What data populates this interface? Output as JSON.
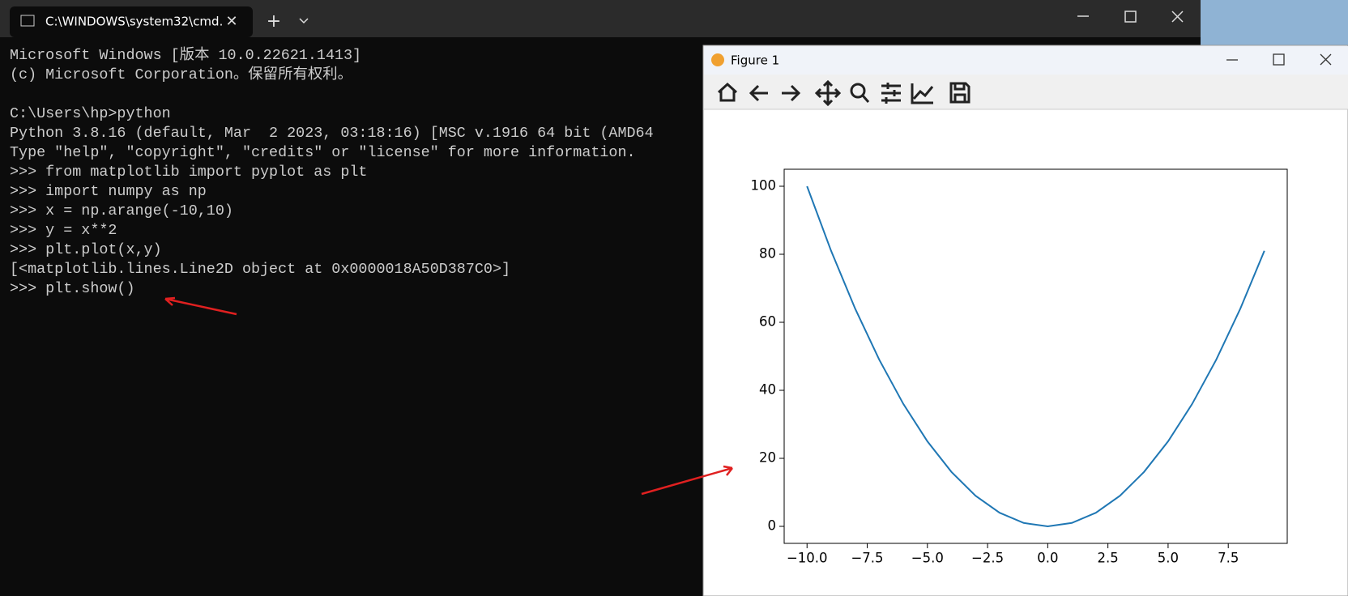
{
  "terminal": {
    "tab_title": "C:\\WINDOWS\\system32\\cmd.",
    "blocks": [
      [
        "Microsoft Windows [版本 10.0.22621.1413]",
        "(c) Microsoft Corporation。保留所有权利。"
      ],
      [
        "C:\\Users\\hp>python",
        "Python 3.8.16 (default, Mar  2 2023, 03:18:16) [MSC v.1916 64 bit (AMD64",
        "Type \"help\", \"copyright\", \"credits\" or \"license\" for more information.",
        ">>> from matplotlib import pyplot as plt",
        ">>> import numpy as np",
        ">>> x = np.arange(-10,10)",
        ">>> y = x**2",
        ">>> plt.plot(x,y)",
        "[<matplotlib.lines.Line2D object at 0x0000018A50D387C0>]",
        ">>> plt.show()"
      ]
    ]
  },
  "figure_window": {
    "title": "Figure 1"
  },
  "chart_data": {
    "type": "line",
    "x": [
      -10,
      -9,
      -8,
      -7,
      -6,
      -5,
      -4,
      -3,
      -2,
      -1,
      0,
      1,
      2,
      3,
      4,
      5,
      6,
      7,
      8,
      9
    ],
    "series": [
      {
        "color": "#1f77b4",
        "values": [
          100,
          81,
          64,
          49,
          36,
          25,
          16,
          9,
          4,
          1,
          0,
          1,
          4,
          9,
          16,
          25,
          36,
          49,
          64,
          81
        ]
      }
    ],
    "xlim": [
      -10.95,
      9.95
    ],
    "ylim": [
      -5,
      105
    ],
    "xticks": [
      {
        "value": -10,
        "label": "−10.0"
      },
      {
        "value": -7.5,
        "label": "−7.5"
      },
      {
        "value": -5,
        "label": "−5.0"
      },
      {
        "value": -2.5,
        "label": "−2.5"
      },
      {
        "value": 0,
        "label": "0.0"
      },
      {
        "value": 2.5,
        "label": "2.5"
      },
      {
        "value": 5,
        "label": "5.0"
      },
      {
        "value": 7.5,
        "label": "7.5"
      }
    ],
    "yticks": [
      0,
      20,
      40,
      60,
      80,
      100
    ]
  }
}
